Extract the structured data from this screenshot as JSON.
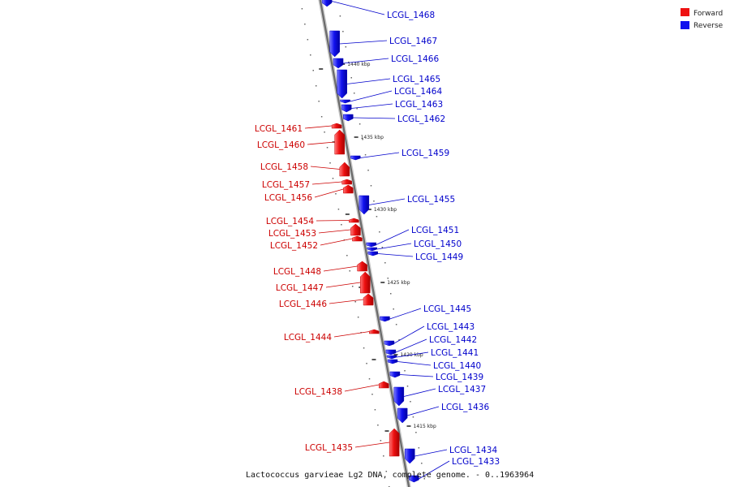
{
  "caption": "Lactococcus garvieae Lg2 DNA, complete genome. - 0..1963964",
  "legend": [
    {
      "label": "Forward",
      "color": "#ee1111"
    },
    {
      "label": "Reverse",
      "color": "#1111ee"
    }
  ],
  "scale_ticks": [
    {
      "label": "1440 kbp",
      "y": 79
    },
    {
      "label": "1435 kbp",
      "y": 169
    },
    {
      "label": "1430 kbp",
      "y": 258
    },
    {
      "label": "1425 kbp",
      "y": 348
    },
    {
      "label": "1420 kbp",
      "y": 437
    },
    {
      "label": "1415 kbp",
      "y": 525
    }
  ],
  "genes": [
    {
      "name": "LCGL_1468",
      "strand": "reverse",
      "start_y": -5,
      "end_y": 8
    },
    {
      "name": "LCGL_1467",
      "strand": "reverse",
      "start_y": 38,
      "end_y": 70
    },
    {
      "name": "LCGL_1466",
      "strand": "reverse",
      "start_y": 72,
      "end_y": 84
    },
    {
      "name": "LCGL_1465",
      "strand": "reverse",
      "start_y": 86,
      "end_y": 121
    },
    {
      "name": "LCGL_1464",
      "strand": "reverse",
      "start_y": 123,
      "end_y": 127
    },
    {
      "name": "LCGL_1463",
      "strand": "reverse",
      "start_y": 129,
      "end_y": 138
    },
    {
      "name": "LCGL_1462",
      "strand": "reverse",
      "start_y": 141,
      "end_y": 149
    },
    {
      "name": "LCGL_1461",
      "strand": "forward",
      "start_y": 152,
      "end_y": 158
    },
    {
      "name": "LCGL_1460",
      "strand": "forward",
      "start_y": 160,
      "end_y": 190
    },
    {
      "name": "LCGL_1459",
      "strand": "reverse",
      "start_y": 192,
      "end_y": 197
    },
    {
      "name": "LCGL_1458",
      "strand": "forward",
      "start_y": 200,
      "end_y": 217
    },
    {
      "name": "LCGL_1457",
      "strand": "forward",
      "start_y": 221,
      "end_y": 227
    },
    {
      "name": "LCGL_1456",
      "strand": "forward",
      "start_y": 228,
      "end_y": 238
    },
    {
      "name": "LCGL_1455",
      "strand": "reverse",
      "start_y": 241,
      "end_y": 264
    },
    {
      "name": "LCGL_1454",
      "strand": "forward",
      "start_y": 269,
      "end_y": 274
    },
    {
      "name": "LCGL_1453",
      "strand": "forward",
      "start_y": 276,
      "end_y": 290
    },
    {
      "name": "LCGL_1452",
      "strand": "forward",
      "start_y": 291,
      "end_y": 297
    },
    {
      "name": "LCGL_1451",
      "strand": "reverse",
      "start_y": 299,
      "end_y": 304
    },
    {
      "name": "LCGL_1450",
      "strand": "reverse",
      "start_y": 305,
      "end_y": 309
    },
    {
      "name": "LCGL_1449",
      "strand": "reverse",
      "start_y": 310,
      "end_y": 315
    },
    {
      "name": "LCGL_1448",
      "strand": "forward",
      "start_y": 322,
      "end_y": 334
    },
    {
      "name": "LCGL_1447",
      "strand": "forward",
      "start_y": 335,
      "end_y": 361
    },
    {
      "name": "LCGL_1446",
      "strand": "forward",
      "start_y": 362,
      "end_y": 376
    },
    {
      "name": "LCGL_1445",
      "strand": "reverse",
      "start_y": 390,
      "end_y": 396
    },
    {
      "name": "LCGL_1444",
      "strand": "forward",
      "start_y": 406,
      "end_y": 411
    },
    {
      "name": "LCGL_1443",
      "strand": "reverse",
      "start_y": 420,
      "end_y": 426
    },
    {
      "name": "LCGL_1442",
      "strand": "reverse",
      "start_y": 431,
      "end_y": 437
    },
    {
      "name": "LCGL_1441",
      "strand": "reverse",
      "start_y": 438,
      "end_y": 442
    },
    {
      "name": "LCGL_1440",
      "strand": "reverse",
      "start_y": 443,
      "end_y": 448
    },
    {
      "name": "LCGL_1439",
      "strand": "reverse",
      "start_y": 458,
      "end_y": 465
    },
    {
      "name": "LCGL_1438",
      "strand": "forward",
      "start_y": 470,
      "end_y": 478
    },
    {
      "name": "LCGL_1437",
      "strand": "reverse",
      "start_y": 477,
      "end_y": 500
    },
    {
      "name": "LCGL_1436",
      "strand": "reverse",
      "start_y": 503,
      "end_y": 521
    },
    {
      "name": "LCGL_1435",
      "strand": "forward",
      "start_y": 528,
      "end_y": 562
    },
    {
      "name": "LCGL_1434",
      "strand": "reverse",
      "start_y": 553,
      "end_y": 571
    },
    {
      "name": "LCGL_1433",
      "strand": "reverse",
      "start_y": 586,
      "end_y": 594
    }
  ],
  "label_positions": {
    "LCGL_1468": [
      477,
      18
    ],
    "LCGL_1467": [
      480,
      50
    ],
    "LCGL_1466": [
      482,
      72
    ],
    "LCGL_1465": [
      484,
      97
    ],
    "LCGL_1464": [
      486,
      112
    ],
    "LCGL_1463": [
      487,
      128
    ],
    "LCGL_1462": [
      490,
      146
    ],
    "LCGL_1461": [
      373,
      158
    ],
    "LCGL_1460": [
      376,
      178
    ],
    "LCGL_1459": [
      495,
      188
    ],
    "LCGL_1458": [
      380,
      205
    ],
    "LCGL_1457": [
      382,
      227
    ],
    "LCGL_1456": [
      385,
      243
    ],
    "LCGL_1455": [
      502,
      245
    ],
    "LCGL_1454": [
      387,
      272
    ],
    "LCGL_1453": [
      390,
      287
    ],
    "LCGL_1452": [
      392,
      302
    ],
    "LCGL_1451": [
      507,
      283
    ],
    "LCGL_1450": [
      510,
      300
    ],
    "LCGL_1449": [
      512,
      316
    ],
    "LCGL_1448": [
      396,
      334
    ],
    "LCGL_1447": [
      399,
      354
    ],
    "LCGL_1446": [
      403,
      374
    ],
    "LCGL_1445": [
      522,
      380
    ],
    "LCGL_1444": [
      409,
      415
    ],
    "LCGL_1443": [
      526,
      402
    ],
    "LCGL_1442": [
      529,
      418
    ],
    "LCGL_1441": [
      531,
      434
    ],
    "LCGL_1440": [
      534,
      450
    ],
    "LCGL_1439": [
      537,
      464
    ],
    "LCGL_1438": [
      422,
      482
    ],
    "LCGL_1437": [
      540,
      479
    ],
    "LCGL_1436": [
      544,
      501
    ],
    "LCGL_1435": [
      435,
      551
    ],
    "LCGL_1434": [
      554,
      554
    ],
    "LCGL_1433": [
      557,
      568
    ]
  }
}
